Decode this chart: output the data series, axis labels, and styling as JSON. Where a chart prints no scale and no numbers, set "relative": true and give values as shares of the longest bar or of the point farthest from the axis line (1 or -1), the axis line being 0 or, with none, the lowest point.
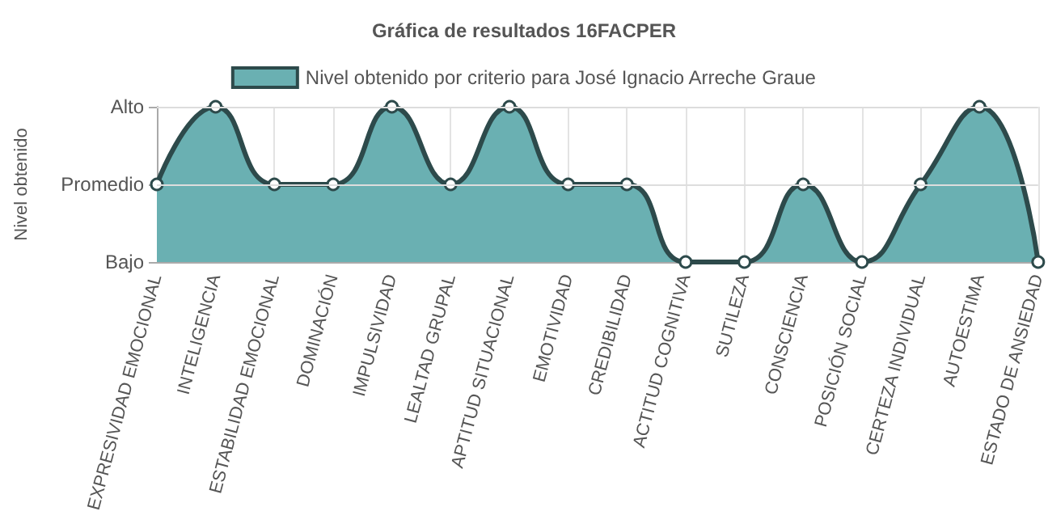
{
  "chart_data": {
    "type": "area",
    "title": "Gráfica de resultados 16FACPER",
    "ylabel": "Nivel obtenido",
    "categories": [
      "EXPRESIVIDAD EMOCIONAL",
      "INTELIGENCIA",
      "ESTABILIDAD EMOCIONAL",
      "DOMINACIÓN",
      "IMPULSIVIDAD",
      "LEALTAD GRUPAL",
      "APTITUD SITUACIONAL",
      "EMOTIVIDAD",
      "CREDIBILIDAD",
      "ACTITUD COGNITIVA",
      "SUTILEZA",
      "CONSCIENCIA",
      "POSICIÓN SOCIAL",
      "CERTEZA INDIVIDUAL",
      "AUTOESTIMA",
      "ESTADO DE ANSIEDAD"
    ],
    "series": [
      {
        "name": "Nivel obtenido por criterio para José Ignacio Arreche Graue",
        "color": "#6ab0b2",
        "values": [
          0.5,
          1,
          0.5,
          0.5,
          1,
          0.5,
          1,
          0.5,
          0.5,
          0,
          0,
          0.5,
          0,
          0.5,
          1,
          0
        ]
      }
    ],
    "relative": true,
    "y_categories": [
      "Alto",
      "Promedio",
      "Bajo"
    ],
    "grid": "x",
    "ref_lines": [
      {
        "axis": "y",
        "value": 1,
        "color": "#dddddd"
      },
      {
        "axis": "y",
        "value": 0.5,
        "color": "#dddddd"
      }
    ],
    "legend": "top",
    "marker": "circle"
  }
}
